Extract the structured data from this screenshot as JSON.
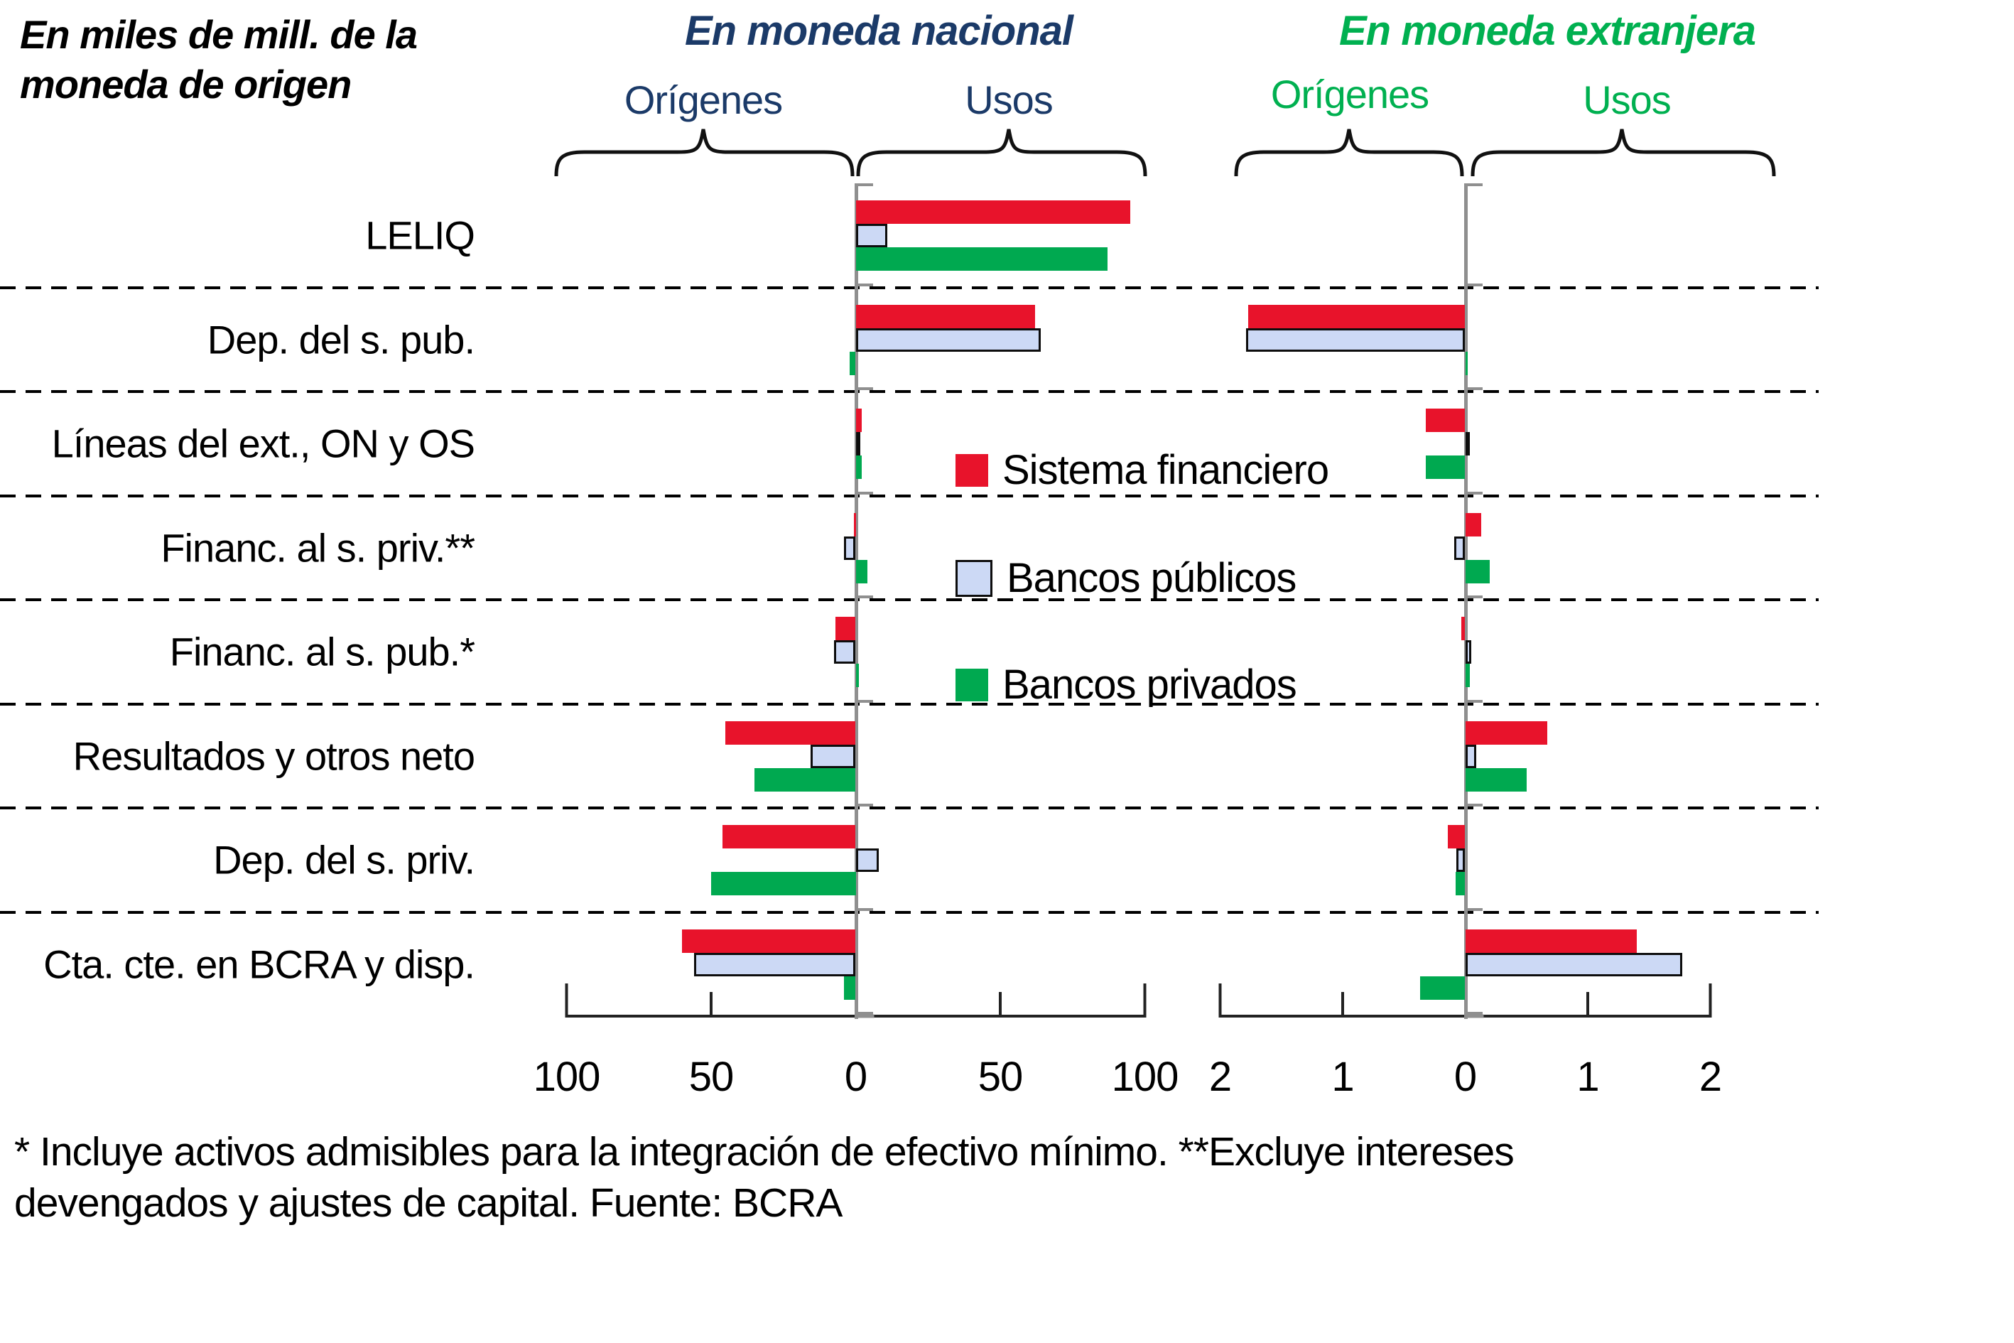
{
  "header": {
    "unit_note": {
      "line1": "En miles de mill. de la",
      "line2": "moneda de origen"
    },
    "panels": [
      {
        "title": "En moneda nacional",
        "origenes": "Orígenes",
        "usos": "Usos"
      },
      {
        "title": "En moneda extranjera",
        "origenes": "Orígenes",
        "usos": "Usos"
      }
    ]
  },
  "legend": [
    {
      "label": "Sistema financiero",
      "color": "#e8132b",
      "style": "filled"
    },
    {
      "label": "Bancos públicos",
      "color": "#ccd9f5",
      "style": "outlined"
    },
    {
      "label": "Bancos privados",
      "color": "#00a950",
      "style": "filled"
    }
  ],
  "footnote": {
    "line1": "* Incluye activos admisibles para la integración de efectivo mínimo. **Excluye intereses",
    "line2": "devengados y ajustes de capital. Fuente: BCRA"
  },
  "chart_data": {
    "type": "bar",
    "orientation": "horizontal",
    "title": "En miles de mill. de la moneda de origen",
    "categories": [
      "LELIQ",
      "Dep. del s. pub.",
      "Líneas del ext., ON y OS",
      "Financ. al s. priv.**",
      "Financ. al s. pub.*",
      "Resultados y otros neto",
      "Dep. del s. priv.",
      "Cta. cte. en BCRA y disp."
    ],
    "grid": "dashed-row-separators",
    "legend_position": "center-inside",
    "panels": [
      {
        "id": "nat",
        "title": "En moneda nacional",
        "sections": {
          "negative": "Orígenes",
          "positive": "Usos"
        },
        "axis": {
          "ticks": [
            -100,
            -50,
            0,
            50,
            100
          ],
          "tick_labels": [
            "100",
            "50",
            "0",
            "50",
            "100"
          ],
          "lim": [
            -115,
            115
          ]
        },
        "series": [
          {
            "name": "Sistema financiero",
            "values": [
              95,
              62,
              2,
              -0.5,
              -7,
              -45,
              -46,
              -60
            ]
          },
          {
            "name": "Bancos públicos",
            "values": [
              11,
              64,
              0.3,
              -4,
              -7.5,
              -15.5,
              8,
              -56
            ]
          },
          {
            "name": "Bancos privados",
            "values": [
              87,
              -2,
              2,
              4,
              1,
              -35,
              -50,
              -4
            ]
          }
        ]
      },
      {
        "id": "ext",
        "title": "En moneda extranjera",
        "sections": {
          "negative": "Orígenes",
          "positive": "Usos"
        },
        "axis": {
          "ticks": [
            -2,
            -1,
            0,
            1,
            2
          ],
          "tick_labels": [
            "2",
            "1",
            "0",
            "1",
            "2"
          ],
          "lim": [
            -2.3,
            2.3
          ]
        },
        "series": [
          {
            "name": "Sistema financiero",
            "values": [
              null,
              -1.77,
              -0.32,
              0.13,
              -0.03,
              0.67,
              -0.14,
              1.4
            ]
          },
          {
            "name": "Bancos públicos",
            "values": [
              null,
              -1.79,
              0.03,
              -0.09,
              0.05,
              0.09,
              -0.07,
              1.77
            ]
          },
          {
            "name": "Bancos privados",
            "values": [
              null,
              0.02,
              -0.32,
              0.2,
              0.04,
              0.5,
              -0.08,
              -0.37
            ]
          }
        ]
      }
    ]
  }
}
